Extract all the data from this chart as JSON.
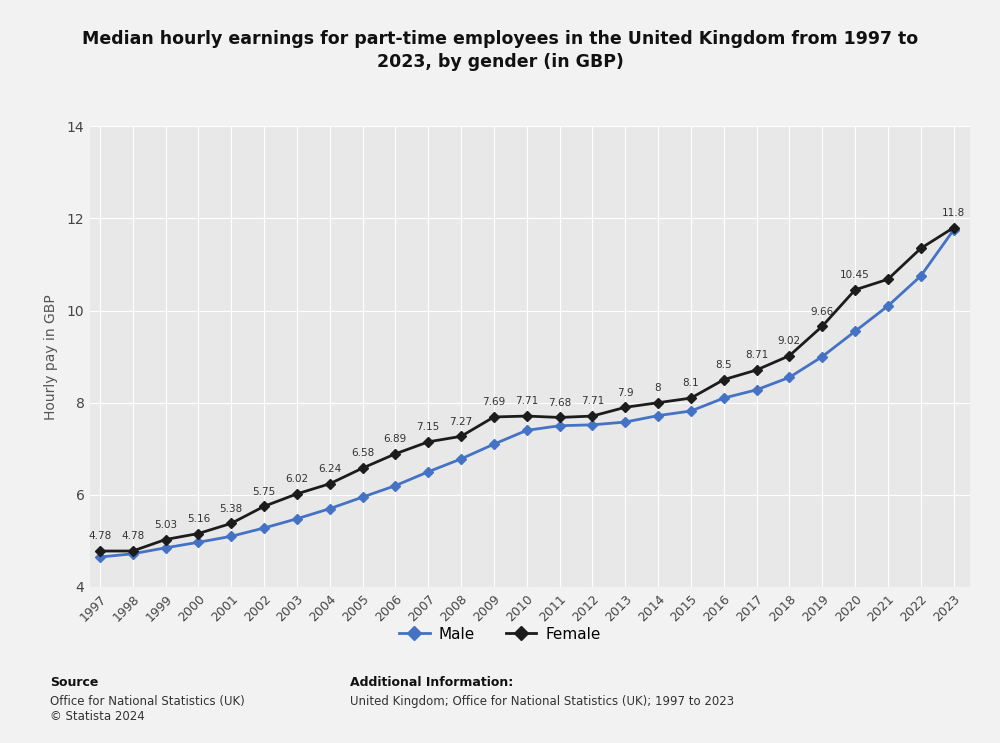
{
  "title": "Median hourly earnings for part-time employees in the United Kingdom from 1997 to\n2023, by gender (in GBP)",
  "ylabel": "Hourly pay in GBP",
  "years": [
    1997,
    1998,
    1999,
    2000,
    2001,
    2002,
    2003,
    2004,
    2005,
    2006,
    2007,
    2008,
    2009,
    2010,
    2011,
    2012,
    2013,
    2014,
    2015,
    2016,
    2017,
    2018,
    2019,
    2020,
    2021,
    2022,
    2023
  ],
  "female": [
    4.78,
    4.78,
    5.03,
    5.16,
    5.38,
    5.75,
    6.02,
    6.24,
    6.58,
    6.89,
    7.15,
    7.27,
    7.69,
    7.71,
    7.68,
    7.71,
    7.9,
    8.0,
    8.1,
    8.5,
    8.71,
    9.02,
    9.66,
    10.45,
    10.68,
    11.35,
    11.8
  ],
  "male": [
    4.65,
    4.72,
    4.85,
    4.97,
    5.1,
    5.28,
    5.48,
    5.7,
    5.95,
    6.2,
    6.5,
    6.78,
    7.1,
    7.4,
    7.5,
    7.52,
    7.58,
    7.72,
    7.82,
    8.1,
    8.28,
    8.55,
    9.0,
    9.55,
    10.1,
    10.75,
    11.75
  ],
  "annotated_female": {
    "1997": "4.78",
    "1998": "4.78",
    "1999": "5.03",
    "2000": "5.16",
    "2001": "5.38",
    "2002": "5.75",
    "2003": "6.02",
    "2004": "6.24",
    "2005": "6.58",
    "2006": "6.89",
    "2007": "7.15",
    "2008": "7.27",
    "2009": "7.69",
    "2010": "7.71",
    "2011": "7.68",
    "2012": "7.71",
    "2013": "7.9",
    "2014": "8",
    "2015": "8.1",
    "2016": "8.5",
    "2017": "8.71",
    "2018": "9.02",
    "2019": "9.66",
    "2020": "10.45",
    "2023": "11.8"
  },
  "male_color": "#4472c4",
  "female_color": "#1c1c1c",
  "bg_color": "#f2f2f2",
  "plot_bg_color": "#e8e8e8",
  "grid_color": "#ffffff",
  "ylim": [
    4,
    14
  ],
  "yticks": [
    4,
    6,
    8,
    10,
    12,
    14
  ],
  "source_bold": "Source",
  "source_text": "Office for National Statistics (UK)\n© Statista 2024",
  "additional_bold": "Additional Information:",
  "additional_text": "United Kingdom; Office for National Statistics (UK); 1997 to 2023"
}
